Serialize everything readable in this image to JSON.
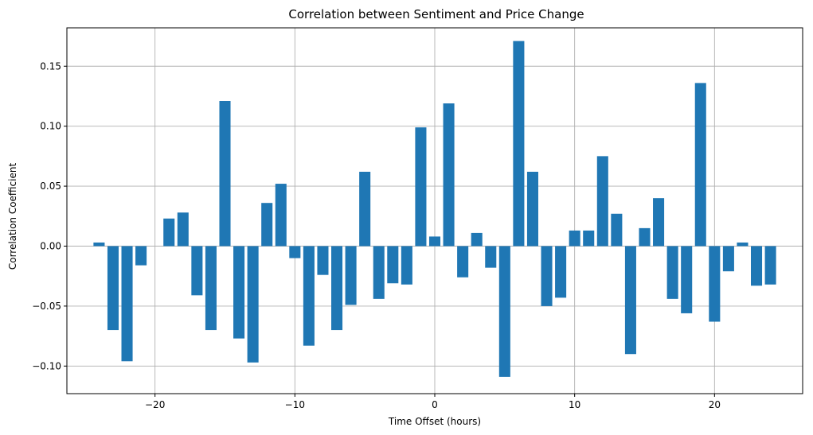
{
  "chart_data": {
    "type": "bar",
    "title": "Correlation between Sentiment and Price Change",
    "xlabel": "Time Offset (hours)",
    "ylabel": "Correlation Coefficient",
    "xlim": [
      -26.3,
      26.3
    ],
    "ylim": [
      -0.123,
      0.182
    ],
    "xticks": [
      -20,
      -10,
      0,
      10,
      20
    ],
    "xtick_labels": [
      "−20",
      "−10",
      "0",
      "10",
      "20"
    ],
    "yticks": [
      -0.1,
      -0.05,
      0.0,
      0.05,
      0.1,
      0.15
    ],
    "ytick_labels": [
      "−0.10",
      "−0.05",
      "0.00",
      "0.05",
      "0.10",
      "0.15"
    ],
    "grid": true,
    "bar_width": 0.8,
    "bar_color": "#1f77b4",
    "x": [
      -24,
      -23,
      -22,
      -21,
      -20,
      -19,
      -18,
      -17,
      -16,
      -15,
      -14,
      -13,
      -12,
      -11,
      -10,
      -9,
      -8,
      -7,
      -6,
      -5,
      -4,
      -3,
      -2,
      -1,
      0,
      1,
      2,
      3,
      4,
      5,
      6,
      7,
      8,
      9,
      10,
      11,
      12,
      13,
      14,
      15,
      16,
      17,
      18,
      19,
      20,
      21,
      22,
      23,
      24
    ],
    "values": [
      0.003,
      -0.07,
      -0.096,
      -0.016,
      0.0,
      0.023,
      0.028,
      -0.041,
      -0.07,
      0.121,
      -0.077,
      -0.097,
      0.036,
      0.052,
      -0.01,
      -0.083,
      -0.024,
      -0.07,
      -0.049,
      0.062,
      -0.044,
      -0.031,
      -0.032,
      0.099,
      0.008,
      0.119,
      -0.026,
      0.011,
      -0.018,
      -0.109,
      0.171,
      0.062,
      -0.05,
      -0.043,
      0.013,
      0.013,
      0.075,
      0.027,
      -0.09,
      0.015,
      0.04,
      -0.044,
      -0.056,
      0.136,
      -0.063,
      -0.021,
      0.003,
      -0.033,
      -0.032
    ]
  }
}
